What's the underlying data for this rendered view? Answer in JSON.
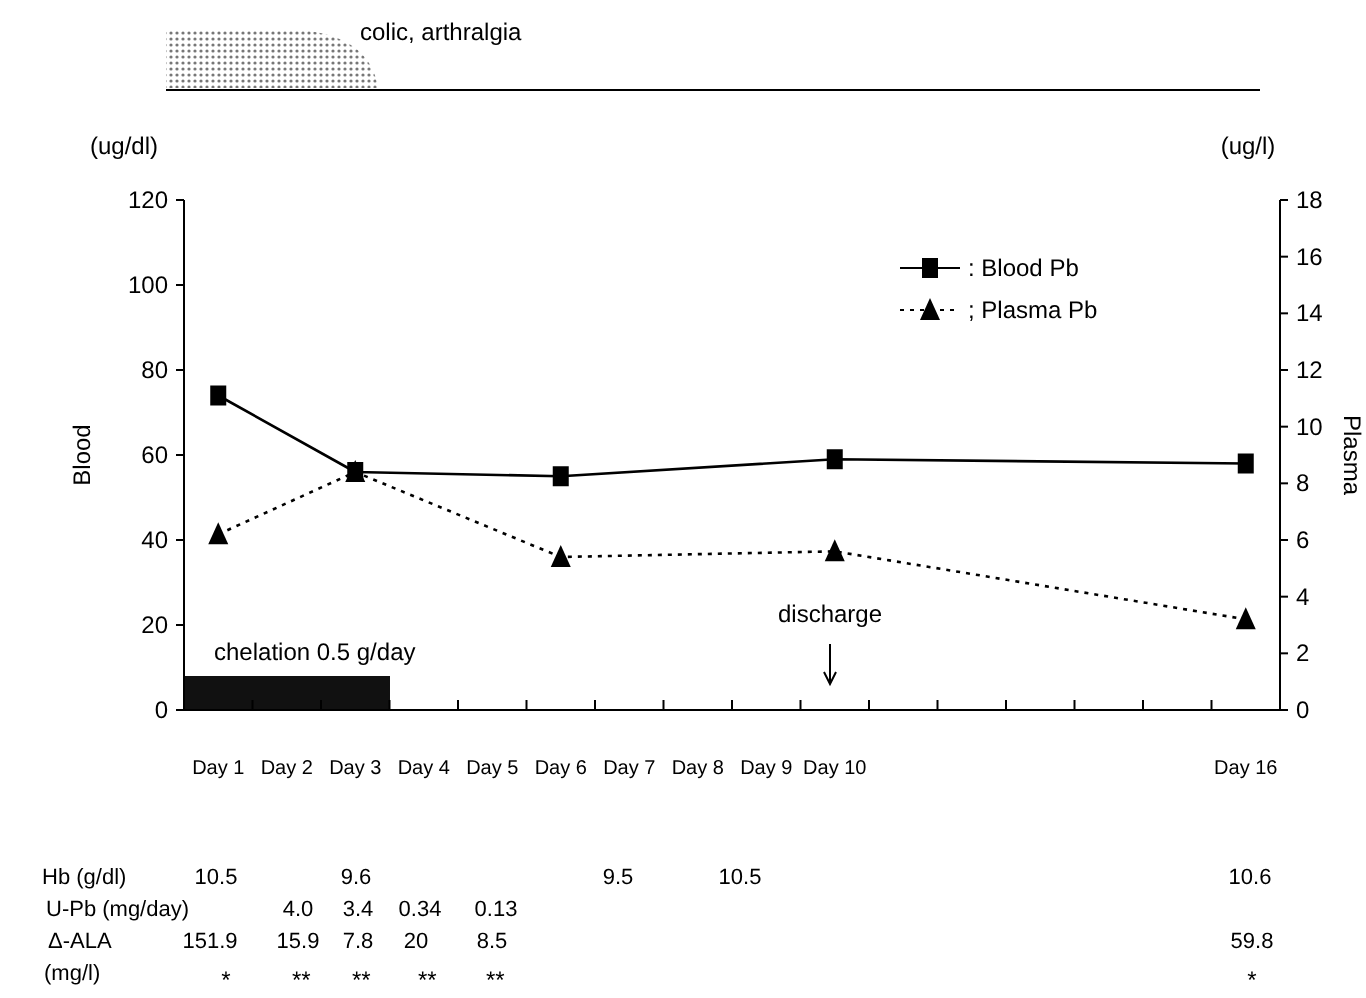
{
  "chart_data": {
    "type": "line",
    "categories": [
      "Day 1",
      "Day 2",
      "Day 3",
      "Day 4",
      "Day 5",
      "Day 6",
      "Day 7",
      "Day 8",
      "Day 9",
      "Day 10",
      null,
      null,
      null,
      null,
      null,
      "Day 16"
    ],
    "ylim": [
      0,
      120
    ],
    "yticks": [
      0,
      20,
      40,
      60,
      80,
      100,
      120
    ],
    "y2lim": [
      0,
      18
    ],
    "y2ticks": [
      0,
      2,
      4,
      6,
      8,
      10,
      12,
      14,
      16,
      18
    ],
    "ylabel": "Blood",
    "y2label": "Plasma",
    "legend": "top right",
    "series": [
      {
        "name": ": Blood Pb",
        "color": "#000000",
        "x": [
          "Day 1",
          "Day 3",
          "Day 6",
          "Day 10",
          "Day 16"
        ],
        "values": [
          74,
          56,
          55,
          59,
          58
        ],
        "marker": "square",
        "line_style": "solid"
      },
      {
        "name": "; Plasma Pb",
        "color": "#000000",
        "axis": "y2",
        "x": [
          "Day 1",
          "Day 3",
          "Day 6",
          "Day 10",
          "Day 16"
        ],
        "values": [
          6.2,
          8.4,
          5.4,
          5.6,
          3.2
        ],
        "marker": "triangle",
        "line_style": "dotted"
      }
    ],
    "annotations": [
      "colic, arthralgia",
      "(ug/dl)",
      "(ug/l)",
      "chelation 0.5 g/day",
      "discharge",
      "Hb (g/dl)",
      "10.5",
      "9.6",
      "9.5",
      "10.5",
      "10.6",
      "U-Pb (mg/day)",
      "4.0",
      "3.4",
      "0.34",
      "0.13",
      "Δ-ALA",
      "151.9",
      "15.9",
      "7.8",
      "20",
      "8.5",
      "59.8",
      "(mg/l)",
      "* ** ** ** **",
      "*"
    ]
  }
}
